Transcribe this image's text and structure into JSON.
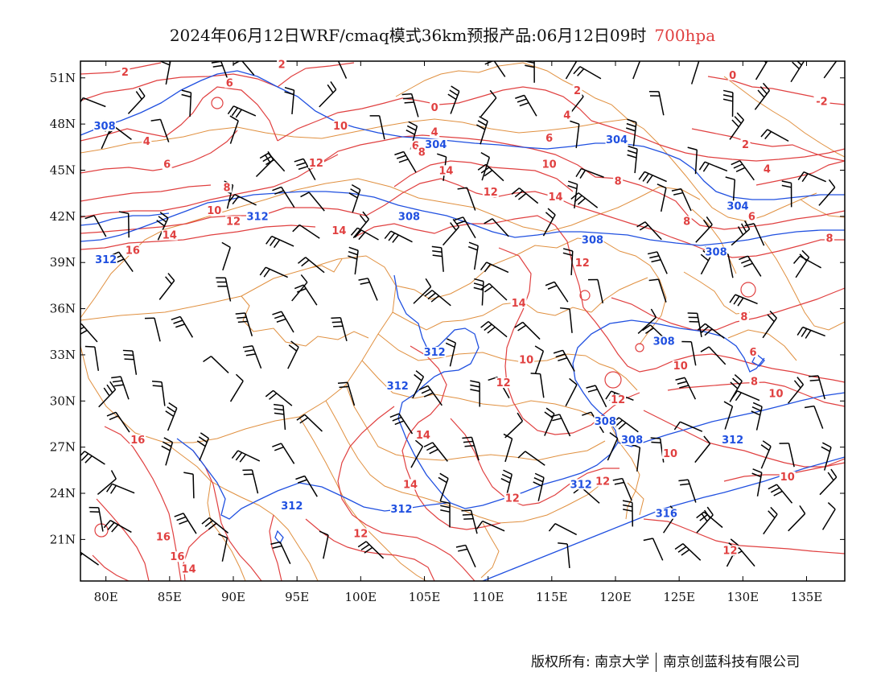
{
  "title": {
    "main": "2024年06月12日WRF/cmaq模式36km预报产品:06月12日09时",
    "level": "700hpa"
  },
  "axes": {
    "lat_labels": [
      "51N",
      "48N",
      "45N",
      "42N",
      "39N",
      "36N",
      "33N",
      "30N",
      "27N",
      "24N",
      "21N"
    ],
    "lon_labels": [
      "80E",
      "85E",
      "90E",
      "95E",
      "100E",
      "105E",
      "110E",
      "115E",
      "120E",
      "125E",
      "130E",
      "135E"
    ]
  },
  "colors": {
    "temperature": "#e04040",
    "geopotential": "#2050e0",
    "border": "#e09040",
    "wind": "#000000"
  },
  "labels": {
    "temperature": [
      {
        "text": "2",
        "lon": 81.5,
        "lat": 51.2
      },
      {
        "text": "2",
        "lon": 93.8,
        "lat": 51.7
      },
      {
        "text": "6",
        "lon": 89.7,
        "lat": 50.5
      },
      {
        "text": "4",
        "lon": 83.2,
        "lat": 46.7
      },
      {
        "text": "6",
        "lon": 84.8,
        "lat": 45.2
      },
      {
        "text": "8",
        "lon": 89.5,
        "lat": 43.7
      },
      {
        "text": "10",
        "lon": 88.5,
        "lat": 42.2
      },
      {
        "text": "12",
        "lon": 90.0,
        "lat": 41.5
      },
      {
        "text": "14",
        "lon": 85.0,
        "lat": 40.6
      },
      {
        "text": "16",
        "lon": 82.1,
        "lat": 39.6
      },
      {
        "text": "10",
        "lon": 98.4,
        "lat": 47.7
      },
      {
        "text": "12",
        "lon": 96.5,
        "lat": 45.3
      },
      {
        "text": "14",
        "lon": 98.3,
        "lat": 40.9
      },
      {
        "text": "0",
        "lon": 105.8,
        "lat": 48.9
      },
      {
        "text": "4",
        "lon": 105.8,
        "lat": 47.3
      },
      {
        "text": "6",
        "lon": 104.3,
        "lat": 46.4
      },
      {
        "text": "8",
        "lon": 104.8,
        "lat": 46.0
      },
      {
        "text": "14",
        "lon": 106.7,
        "lat": 44.8
      },
      {
        "text": "12",
        "lon": 110.2,
        "lat": 43.4
      },
      {
        "text": "10",
        "lon": 114.8,
        "lat": 45.2
      },
      {
        "text": "14",
        "lon": 115.3,
        "lat": 43.1
      },
      {
        "text": "4",
        "lon": 116.2,
        "lat": 48.4
      },
      {
        "text": "6",
        "lon": 114.8,
        "lat": 46.9
      },
      {
        "text": "2",
        "lon": 117.0,
        "lat": 50.0
      },
      {
        "text": "8",
        "lon": 120.2,
        "lat": 44.1
      },
      {
        "text": "0",
        "lon": 129.2,
        "lat": 51.0
      },
      {
        "text": "2",
        "lon": 130.2,
        "lat": 46.5
      },
      {
        "text": "-2",
        "lon": 136.2,
        "lat": 49.3
      },
      {
        "text": "4",
        "lon": 131.9,
        "lat": 44.9
      },
      {
        "text": "6",
        "lon": 130.7,
        "lat": 41.8
      },
      {
        "text": "8",
        "lon": 125.6,
        "lat": 41.5
      },
      {
        "text": "8",
        "lon": 136.8,
        "lat": 40.4
      },
      {
        "text": "12",
        "lon": 117.4,
        "lat": 38.8
      },
      {
        "text": "14",
        "lon": 112.4,
        "lat": 36.2
      },
      {
        "text": "8",
        "lon": 130.1,
        "lat": 35.3
      },
      {
        "text": "6",
        "lon": 130.8,
        "lat": 33.0
      },
      {
        "text": "8",
        "lon": 130.9,
        "lat": 31.1
      },
      {
        "text": "10",
        "lon": 125.1,
        "lat": 32.1
      },
      {
        "text": "10",
        "lon": 113.0,
        "lat": 32.5
      },
      {
        "text": "12",
        "lon": 111.2,
        "lat": 31.0
      },
      {
        "text": "12",
        "lon": 120.2,
        "lat": 29.9
      },
      {
        "text": "10",
        "lon": 124.3,
        "lat": 26.4
      },
      {
        "text": "10",
        "lon": 132.6,
        "lat": 30.3
      },
      {
        "text": "10",
        "lon": 133.5,
        "lat": 24.9
      },
      {
        "text": "14",
        "lon": 104.9,
        "lat": 27.6
      },
      {
        "text": "14",
        "lon": 103.9,
        "lat": 24.4
      },
      {
        "text": "12",
        "lon": 111.9,
        "lat": 23.5
      },
      {
        "text": "12",
        "lon": 119.0,
        "lat": 24.6
      },
      {
        "text": "12",
        "lon": 100.0,
        "lat": 21.2
      },
      {
        "text": "16",
        "lon": 82.5,
        "lat": 27.3
      },
      {
        "text": "16",
        "lon": 84.5,
        "lat": 21.0
      },
      {
        "text": "16",
        "lon": 85.6,
        "lat": 19.7
      },
      {
        "text": "14",
        "lon": 86.5,
        "lat": 18.9
      },
      {
        "text": "12",
        "lon": 129.0,
        "lat": 20.1
      }
    ],
    "geopotential": [
      {
        "text": "308",
        "lon": 79.9,
        "lat": 47.7
      },
      {
        "text": "312",
        "lon": 91.9,
        "lat": 41.8
      },
      {
        "text": "312",
        "lon": 80.0,
        "lat": 39.0
      },
      {
        "text": "304",
        "lon": 105.9,
        "lat": 46.5
      },
      {
        "text": "308",
        "lon": 103.8,
        "lat": 41.8
      },
      {
        "text": "304",
        "lon": 120.1,
        "lat": 46.8
      },
      {
        "text": "304",
        "lon": 129.6,
        "lat": 42.5
      },
      {
        "text": "308",
        "lon": 118.2,
        "lat": 40.3
      },
      {
        "text": "308",
        "lon": 127.9,
        "lat": 39.5
      },
      {
        "text": "312",
        "lon": 105.8,
        "lat": 33.0
      },
      {
        "text": "308",
        "lon": 123.8,
        "lat": 33.7
      },
      {
        "text": "312",
        "lon": 102.9,
        "lat": 30.8
      },
      {
        "text": "308",
        "lon": 119.2,
        "lat": 28.5
      },
      {
        "text": "308",
        "lon": 121.3,
        "lat": 27.3
      },
      {
        "text": "312",
        "lon": 129.2,
        "lat": 27.3
      },
      {
        "text": "312",
        "lon": 117.3,
        "lat": 24.4
      },
      {
        "text": "312",
        "lon": 94.6,
        "lat": 23.0
      },
      {
        "text": "312",
        "lon": 103.2,
        "lat": 22.8
      },
      {
        "text": "316",
        "lon": 124.0,
        "lat": 22.5
      }
    ]
  },
  "footer": {
    "copyright": "版权所有: 南京大学",
    "company": "南京创蓝科技有限公司"
  }
}
